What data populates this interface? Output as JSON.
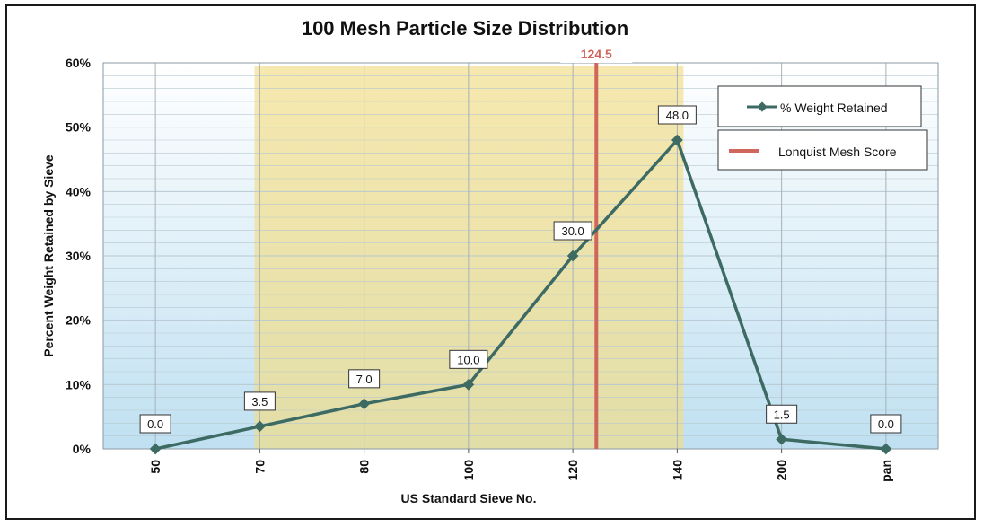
{
  "chart_data": {
    "type": "line",
    "title": "100 Mesh Particle Size Distribution",
    "xlabel": "US Standard Sieve No.",
    "ylabel": "Percent Weight Retained by Sieve",
    "categories": [
      "50",
      "70",
      "80",
      "100",
      "120",
      "140",
      "200",
      "pan"
    ],
    "series": [
      {
        "name": "% Weight Retained",
        "values": [
          0.0,
          3.5,
          7.0,
          10.0,
          30.0,
          48.0,
          1.5,
          0.0
        ],
        "data_labels": [
          "0.0",
          "3.5",
          "7.0",
          "10.0",
          "30.0",
          "48.0",
          "1.5",
          "0.0"
        ],
        "color": "#3d6b64"
      }
    ],
    "ylim": [
      0,
      60
    ],
    "yticks": [
      0,
      10,
      20,
      30,
      40,
      50,
      60
    ],
    "ytick_labels": [
      "0%",
      "10%",
      "20%",
      "30%",
      "40%",
      "50%",
      "60%"
    ],
    "score_line": {
      "name": "Lonquist Mesh Score",
      "value": 124.5,
      "label": "124.5",
      "color": "#d0665b"
    },
    "highlight_band": {
      "from_category": "70",
      "to_category": "140",
      "color": "#f0dc8a"
    },
    "grid": true,
    "legend_position": "top-right",
    "colors": {
      "background_blue": "#cde6f3",
      "grid": "#b8c8d0"
    }
  }
}
